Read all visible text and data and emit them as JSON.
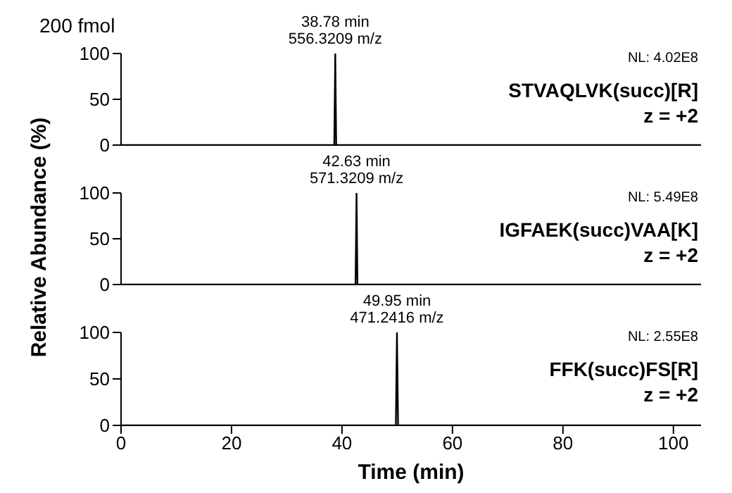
{
  "chart_data": [
    {
      "type": "line",
      "title": "200 fmol",
      "x": [
        0,
        38.6,
        38.78,
        38.95,
        105
      ],
      "series": [
        {
          "color": "#000000",
          "values": [
            0,
            0,
            100,
            0,
            0
          ]
        }
      ],
      "xlim": [
        0,
        105
      ],
      "ylim": [
        0,
        100
      ],
      "yticks": [
        0,
        50,
        100
      ],
      "tick_labels": "y",
      "annotations": [
        {
          "text": "38.78 min\n556.3209 m/z",
          "x": 38.78,
          "y": 100
        },
        "NL: 4.02E8",
        "STVAQLVK(succ)[R]",
        "z = +2"
      ]
    },
    {
      "type": "line",
      "ylabel": "Relative Abundance (%)",
      "x": [
        0,
        42.45,
        42.63,
        42.8,
        105
      ],
      "series": [
        {
          "color": "#000000",
          "values": [
            0,
            0,
            100,
            0,
            0
          ]
        }
      ],
      "xlim": [
        0,
        105
      ],
      "ylim": [
        0,
        100
      ],
      "yticks": [
        0,
        50,
        100
      ],
      "tick_labels": "y",
      "annotations": [
        {
          "text": "42.63 min\n571.3209 m/z",
          "x": 42.63,
          "y": 100
        },
        "NL: 5.49E8",
        "IGFAEK(succ)VAA[K]",
        "z = +2"
      ]
    },
    {
      "type": "line",
      "xlabel": "Time (min)",
      "x": [
        0,
        49.75,
        49.95,
        50.15,
        105
      ],
      "series": [
        {
          "color": "#000000",
          "values": [
            0,
            0,
            100,
            0,
            0
          ]
        }
      ],
      "xlim": [
        0,
        105
      ],
      "ylim": [
        0,
        100
      ],
      "xticks": [
        0,
        20,
        40,
        60,
        80,
        100
      ],
      "yticks": [
        0,
        50,
        100
      ],
      "annotations": [
        {
          "text": "49.95 min\n471.2416 m/z",
          "x": 49.95,
          "y": 100
        },
        "NL: 2.55E8",
        "FFK(succ)FS[R]",
        "z = +2"
      ]
    }
  ]
}
